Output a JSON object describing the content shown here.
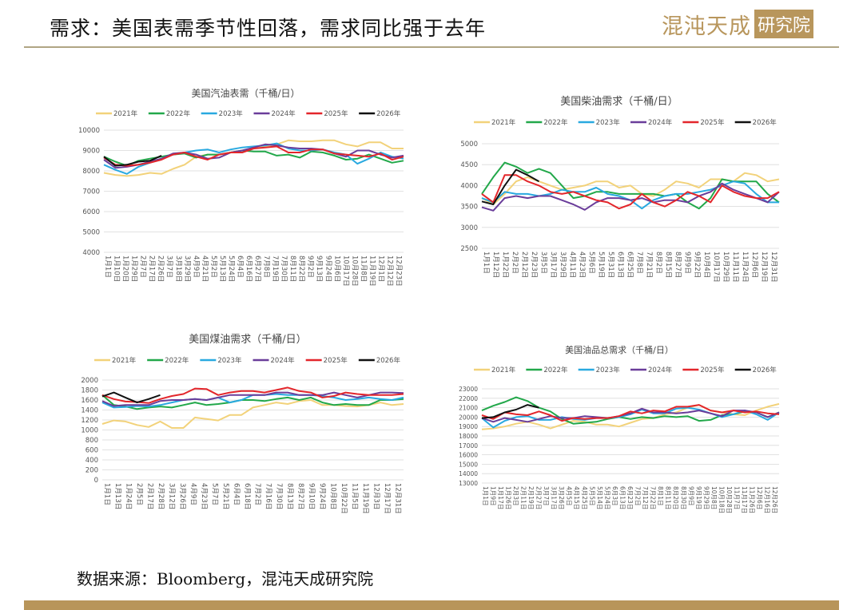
{
  "header": {
    "title": "需求：美国表需季节性回落，需求同比强于去年",
    "logo_text": "混沌天成",
    "logo_badge": "研究院"
  },
  "footer": {
    "source": "数据来源：Bloomberg，混沌天成研究院"
  },
  "colors": {
    "2021年": "#f2d27a",
    "2022年": "#22a84a",
    "2023年": "#29a9e0",
    "2024年": "#6a3d9a",
    "2025年": "#e3262b",
    "2026年": "#111111"
  },
  "chart_data": [
    {
      "type": "line",
      "title": "美国汽油表需（千桶/日）",
      "ylim": [
        4000,
        10000
      ],
      "ystep": 1000,
      "xlabels": [
        "1月1日",
        "1月10日",
        "1月20日",
        "1月29日",
        "2月7日",
        "2月17日",
        "2月26日",
        "3月7日",
        "3月18日",
        "3月29日",
        "4月9日",
        "4月21日",
        "5月2日",
        "5月13日",
        "5月24日",
        "6月4日",
        "6月16日",
        "6月27日",
        "7月8日",
        "7月19日",
        "7月30日",
        "8月11日",
        "8月22日",
        "9月2日",
        "9月13日",
        "9月24日",
        "10月6日",
        "10月17日",
        "10月28日",
        "11月8日",
        "11月19日",
        "12月1日",
        "12月12日",
        "12月23日"
      ],
      "x_unit": "week",
      "x_step_weeks": 2,
      "series": [
        {
          "name": "2021年",
          "values": [
            7900,
            7800,
            7750,
            7800,
            7900,
            7850,
            8100,
            8300,
            8700,
            8800,
            8800,
            8900,
            9000,
            9100,
            9200,
            9300,
            9500,
            9450,
            9450,
            9500,
            9500,
            9300,
            9200,
            9400,
            9400,
            9100,
            9100
          ]
        },
        {
          "name": "2022年",
          "values": [
            8700,
            8450,
            8250,
            8500,
            8600,
            8700,
            8800,
            8850,
            8650,
            8800,
            8800,
            8900,
            9000,
            8950,
            8950,
            8750,
            8800,
            8650,
            8950,
            8900,
            8750,
            8550,
            8600,
            8800,
            8600,
            8400,
            8500
          ]
        },
        {
          "name": "2023年",
          "values": [
            8300,
            8050,
            7850,
            8200,
            8400,
            8600,
            8800,
            8900,
            9000,
            9050,
            8900,
            9050,
            9150,
            9200,
            9250,
            9350,
            9100,
            9000,
            9000,
            9050,
            8900,
            8800,
            8350,
            8600,
            8900,
            8700,
            8600
          ]
        },
        {
          "name": "2024年",
          "values": [
            8550,
            8150,
            8200,
            8300,
            8450,
            8600,
            8850,
            8900,
            8800,
            8600,
            8650,
            8900,
            9000,
            9150,
            9300,
            9250,
            9150,
            9100,
            9100,
            9050,
            8850,
            8700,
            9000,
            9000,
            8800,
            8650,
            8750
          ]
        },
        {
          "name": "2025年",
          "values": [
            8650,
            8300,
            8250,
            8300,
            8400,
            8550,
            8800,
            8900,
            8700,
            8550,
            8800,
            8900,
            8900,
            9100,
            9150,
            9200,
            8900,
            8900,
            9050,
            9050,
            8850,
            8800,
            8750,
            8700,
            8850,
            8550,
            8700
          ]
        },
        {
          "name": "2026年",
          "values": [
            8700,
            8250,
            8300,
            8450,
            8500,
            8750
          ]
        }
      ]
    },
    {
      "type": "line",
      "title": "美国柴油需求（千桶/日）",
      "ylim": [
        2500,
        5000
      ],
      "ystep": 500,
      "xlabels": [
        "1月1日",
        "1月12日",
        "1月22日",
        "2月2日",
        "2月12日",
        "2月23日",
        "3月5日",
        "3月17日",
        "3月29日",
        "4月11日",
        "4月23日",
        "5月6日",
        "5月19日",
        "5月31日",
        "6月13日",
        "6月25日",
        "7月8日",
        "7月21日",
        "8月2日",
        "8月15日",
        "8月27日",
        "9月9日",
        "9月22日",
        "10月4日",
        "10月17日",
        "10月29日",
        "11月11日",
        "11月24日",
        "12月6日",
        "12月19日",
        "12月31日"
      ],
      "x_unit": "week",
      "x_step_weeks": 2,
      "series": [
        {
          "name": "2021年",
          "values": [
            3700,
            3550,
            3800,
            4100,
            4200,
            4100,
            4000,
            3900,
            3950,
            4000,
            4100,
            4100,
            3950,
            4000,
            3800,
            3750,
            3900,
            4100,
            4050,
            3950,
            4150,
            4150,
            4100,
            4300,
            4250,
            4100,
            4150
          ]
        },
        {
          "name": "2022年",
          "values": [
            3800,
            4200,
            4550,
            4450,
            4300,
            4400,
            4300,
            4000,
            3700,
            3750,
            3850,
            3850,
            3800,
            3800,
            3800,
            3800,
            3750,
            3800,
            3600,
            3450,
            3700,
            4150,
            4100,
            4100,
            4100,
            3800,
            3600
          ]
        },
        {
          "name": "2023年",
          "values": [
            3700,
            3600,
            3850,
            3800,
            3800,
            3750,
            3800,
            3900,
            3850,
            3850,
            3950,
            3800,
            3750,
            3650,
            3450,
            3650,
            3750,
            3800,
            3800,
            3850,
            3900,
            4000,
            4100,
            4050,
            3800,
            3600,
            3600
          ]
        },
        {
          "name": "2024年",
          "values": [
            3480,
            3400,
            3700,
            3750,
            3700,
            3750,
            3750,
            3650,
            3550,
            3420,
            3600,
            3700,
            3700,
            3650,
            3700,
            3600,
            3650,
            3650,
            3600,
            3750,
            3850,
            4050,
            3900,
            3800,
            3700,
            3600,
            3850
          ]
        },
        {
          "name": "2025年",
          "values": [
            3800,
            3600,
            4250,
            4250,
            4100,
            4000,
            3850,
            3800,
            3850,
            3750,
            3650,
            3600,
            3450,
            3550,
            3800,
            3600,
            3500,
            3650,
            3850,
            3750,
            3600,
            4000,
            3850,
            3750,
            3700,
            3700,
            3850
          ]
        },
        {
          "name": "2026年",
          "values": [
            3620,
            3550,
            4000,
            4380,
            4250,
            4100
          ]
        }
      ]
    },
    {
      "type": "line",
      "title": "美国煤油需求（千桶/日）",
      "ylim": [
        0,
        2000
      ],
      "ystep": 200,
      "xlabels": [
        "1月1日",
        "1月13日",
        "1月24日",
        "2月5日",
        "2月17日",
        "2月28日",
        "3月12日",
        "3月26日",
        "4月9日",
        "4月23日",
        "5月7日",
        "5月21日",
        "6月4日",
        "6月18日",
        "7月2日",
        "7月16日",
        "7月30日",
        "8月13日",
        "8月27日",
        "9月10日",
        "9月24日",
        "10月8日",
        "10月22日",
        "11月5日",
        "11月19日",
        "12月3日",
        "12月17日",
        "12月31日"
      ],
      "x_unit": "week",
      "x_step_weeks": 2,
      "series": [
        {
          "name": "2021年",
          "values": [
            1120,
            1190,
            1170,
            1100,
            1060,
            1170,
            1040,
            1040,
            1250,
            1220,
            1190,
            1300,
            1300,
            1450,
            1500,
            1550,
            1520,
            1580,
            1600,
            1500,
            1500,
            1480,
            1470,
            1500,
            1550,
            1500,
            1520
          ]
        },
        {
          "name": "2022年",
          "values": [
            1700,
            1500,
            1470,
            1420,
            1450,
            1470,
            1450,
            1500,
            1550,
            1500,
            1520,
            1550,
            1600,
            1600,
            1580,
            1620,
            1650,
            1600,
            1650,
            1550,
            1500,
            1520,
            1500,
            1500,
            1600,
            1600,
            1620
          ]
        },
        {
          "name": "2023年",
          "values": [
            1550,
            1450,
            1460,
            1480,
            1470,
            1500,
            1550,
            1600,
            1620,
            1600,
            1650,
            1550,
            1600,
            1700,
            1700,
            1720,
            1700,
            1700,
            1700,
            1680,
            1650,
            1600,
            1620,
            1650,
            1620,
            1600,
            1650
          ]
        },
        {
          "name": "2024年",
          "values": [
            1580,
            1480,
            1500,
            1500,
            1500,
            1580,
            1600,
            1600,
            1620,
            1600,
            1650,
            1700,
            1700,
            1700,
            1700,
            1750,
            1750,
            1700,
            1700,
            1700,
            1750,
            1700,
            1650,
            1700,
            1750,
            1750,
            1740
          ]
        },
        {
          "name": "2025年",
          "values": [
            1700,
            1620,
            1570,
            1560,
            1540,
            1620,
            1680,
            1720,
            1830,
            1820,
            1700,
            1750,
            1780,
            1780,
            1750,
            1800,
            1850,
            1780,
            1750,
            1650,
            1680,
            1750,
            1720,
            1700,
            1700,
            1700,
            1720
          ]
        },
        {
          "name": "2026年",
          "values": [
            1670,
            1750,
            1650,
            1550,
            1620,
            1700
          ]
        }
      ]
    },
    {
      "type": "line",
      "title": "美国油品总需求（千桶/日）",
      "ylim": [
        13000,
        23000
      ],
      "ystep": 1000,
      "xlabels": [
        "1月1日",
        "1月9日",
        "1月17日",
        "1月26日",
        "2月3日",
        "2月11日",
        "2月19日",
        "2月27日",
        "3月7日",
        "3月17日",
        "3月26日",
        "4月5日",
        "4月15日",
        "4月25日",
        "5月5日",
        "5月14日",
        "5月24日",
        "6月3日",
        "6月13日",
        "6月23日",
        "7月2日",
        "7月12日",
        "7月22日",
        "8月1日",
        "8月11日",
        "8月20日",
        "8月30日",
        "9月9日",
        "9月19日",
        "9月29日",
        "10月8日",
        "10月18日",
        "10月28日",
        "11月7日",
        "11月17日",
        "11月26日",
        "12月6日",
        "12月16日",
        "12月26日"
      ],
      "x_unit": "week",
      "x_step_weeks": 2,
      "series": [
        {
          "name": "2021年",
          "values": [
            18700,
            18800,
            19000,
            19300,
            19500,
            19200,
            18800,
            19200,
            19600,
            19500,
            19200,
            19200,
            19000,
            19400,
            19800,
            19900,
            20300,
            20500,
            21000,
            21300,
            20700,
            20500,
            20300,
            20200,
            20700,
            21100,
            21400
          ]
        },
        {
          "name": "2022年",
          "values": [
            20700,
            21200,
            21600,
            22100,
            21700,
            21000,
            20600,
            19800,
            19300,
            19400,
            19500,
            19800,
            20000,
            19800,
            20000,
            19900,
            20100,
            20000,
            20100,
            19600,
            19700,
            20200,
            20300,
            20600,
            20500,
            20000,
            20500
          ]
        },
        {
          "name": "2023年",
          "values": [
            19900,
            18900,
            19600,
            20000,
            20100,
            19700,
            19700,
            20000,
            19800,
            19700,
            19900,
            19900,
            20000,
            20300,
            20800,
            20400,
            20400,
            20900,
            21000,
            20800,
            20400,
            20000,
            20300,
            20700,
            20300,
            19700,
            20500
          ]
        },
        {
          "name": "2024年",
          "values": [
            19900,
            19500,
            19900,
            19700,
            19500,
            19800,
            20100,
            19900,
            19900,
            20100,
            20000,
            19900,
            20100,
            20400,
            20900,
            20500,
            20500,
            20400,
            20500,
            20700,
            20400,
            20100,
            20700,
            20700,
            20500,
            20000,
            20500
          ]
        },
        {
          "name": "2025年",
          "values": [
            20200,
            19800,
            20500,
            20300,
            20200,
            20600,
            20200,
            19600,
            19900,
            19800,
            19900,
            19900,
            20100,
            20600,
            20400,
            20700,
            20600,
            21100,
            21100,
            21300,
            20700,
            20500,
            20700,
            20500,
            20600,
            20400,
            20300
          ]
        },
        {
          "name": "2026年",
          "values": [
            19900,
            20000,
            20500,
            20800,
            21300,
            21000
          ]
        }
      ]
    }
  ]
}
